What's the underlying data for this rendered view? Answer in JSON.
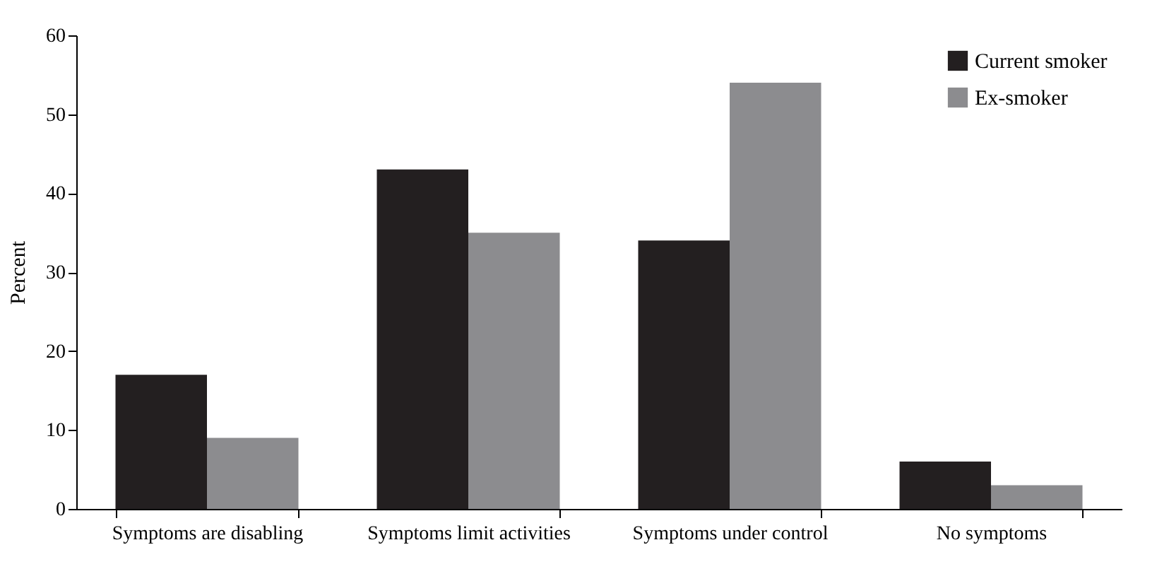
{
  "chart_data": {
    "type": "bar",
    "ylabel": "Percent",
    "categories": [
      "Symptoms are disabling",
      "Symptoms limit activities",
      "Symptoms under control",
      "No symptoms"
    ],
    "series": [
      {
        "name": "Current smoker",
        "color": "#231f20",
        "values": [
          17,
          43,
          34,
          6
        ]
      },
      {
        "name": "Ex-smoker",
        "color": "#8c8c8f",
        "values": [
          9,
          35,
          54,
          3
        ]
      }
    ],
    "ylim": [
      0,
      60
    ],
    "yticks": [
      0,
      10,
      20,
      30,
      40,
      50,
      60
    ],
    "grid": false,
    "legend": "top right"
  }
}
